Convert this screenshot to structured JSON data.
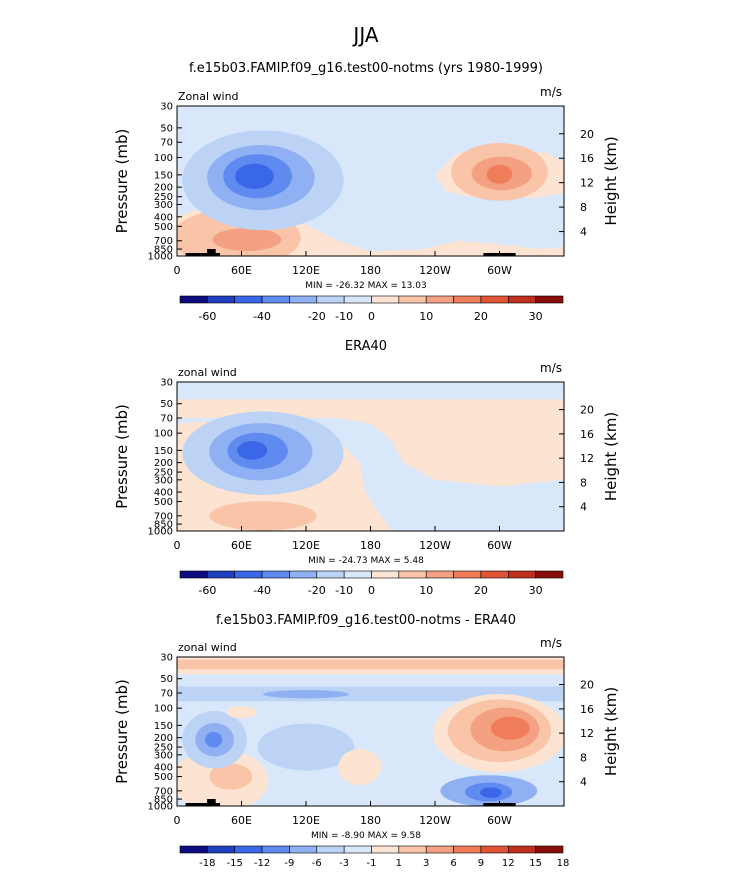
{
  "page_title": "JJA",
  "chart_data": [
    {
      "type": "heatmap",
      "title": "f.e15b03.FAMIP.f09_g16.test00-notms (yrs 1980-1999)",
      "left_label": "Zonal wind",
      "units": "m/s",
      "ylabel_left": "Pressure (mb)",
      "ylabel_right": "Height (km)",
      "xticks": [
        "0",
        "60E",
        "120E",
        "180",
        "120W",
        "60W"
      ],
      "yticks_left": [
        "30",
        "50",
        "70",
        "100",
        "150",
        "200",
        "250",
        "300",
        "400",
        "500",
        "700",
        "850",
        "1000"
      ],
      "yticks_right": [
        "20",
        "16",
        "12",
        "8",
        "4"
      ],
      "stats": "MIN = -26.32   MAX = 13.03",
      "colorbar_labels": [
        "-60",
        "-40",
        "-20",
        "-10",
        "0",
        "10",
        "20",
        "30"
      ],
      "features": [
        {
          "lon": 75,
          "p": 150,
          "value": -26,
          "desc": "easterly jet core"
        },
        {
          "lon": 290,
          "p": 150,
          "value": 13,
          "desc": "westerly max"
        }
      ],
      "min": -26.32,
      "max": 13.03
    },
    {
      "type": "heatmap",
      "title": "ERA40",
      "left_label": "zonal wind",
      "units": "m/s",
      "ylabel_left": "Pressure (mb)",
      "ylabel_right": "Height (km)",
      "xticks": [
        "0",
        "60E",
        "120E",
        "180",
        "120W",
        "60W"
      ],
      "yticks_left": [
        "30",
        "50",
        "70",
        "100",
        "150",
        "200",
        "250",
        "300",
        "400",
        "500",
        "700",
        "850",
        "1000"
      ],
      "yticks_right": [
        "20",
        "16",
        "12",
        "8",
        "4"
      ],
      "stats": "MIN = -24.73   MAX =   5.48",
      "colorbar_labels": [
        "-60",
        "-40",
        "-20",
        "-10",
        "0",
        "10",
        "20",
        "30"
      ],
      "min": -24.73,
      "max": 5.48
    },
    {
      "type": "heatmap",
      "title": "f.e15b03.FAMIP.f09_g16.test00-notms - ERA40",
      "left_label": "zonal wind",
      "units": "m/s",
      "ylabel_left": "Pressure (mb)",
      "ylabel_right": "Height (km)",
      "xticks": [
        "0",
        "60E",
        "120E",
        "180",
        "120W",
        "60W"
      ],
      "yticks_left": [
        "30",
        "50",
        "70",
        "100",
        "150",
        "200",
        "250",
        "300",
        "400",
        "500",
        "700",
        "850",
        "1000"
      ],
      "yticks_right": [
        "20",
        "16",
        "12",
        "8",
        "4"
      ],
      "stats": "MIN =  -8.90   MAX =   9.58",
      "colorbar_labels": [
        "-18",
        "-15",
        "-12",
        "-9",
        "-6",
        "-3",
        "-1",
        "1",
        "3",
        "6",
        "9",
        "12",
        "15",
        "18"
      ],
      "min": -8.9,
      "max": 9.58
    }
  ],
  "colors": {
    "dark_blue_1": "#0d0d80",
    "dark_blue_2": "#1f3fbf",
    "blue": "#3a66e8",
    "mid_blue": "#5f8af0",
    "light_blue": "#8fb0f2",
    "pale_blue": "#bcd3f5",
    "very_pale_blue": "#d8e8fa",
    "pale_peach": "#fde3d2",
    "peach": "#f9c4a8",
    "salmon": "#f4a183",
    "orange": "#ef7d5a",
    "red_orange": "#e05535",
    "red": "#c0301c",
    "dark_red": "#8a0f0a"
  }
}
